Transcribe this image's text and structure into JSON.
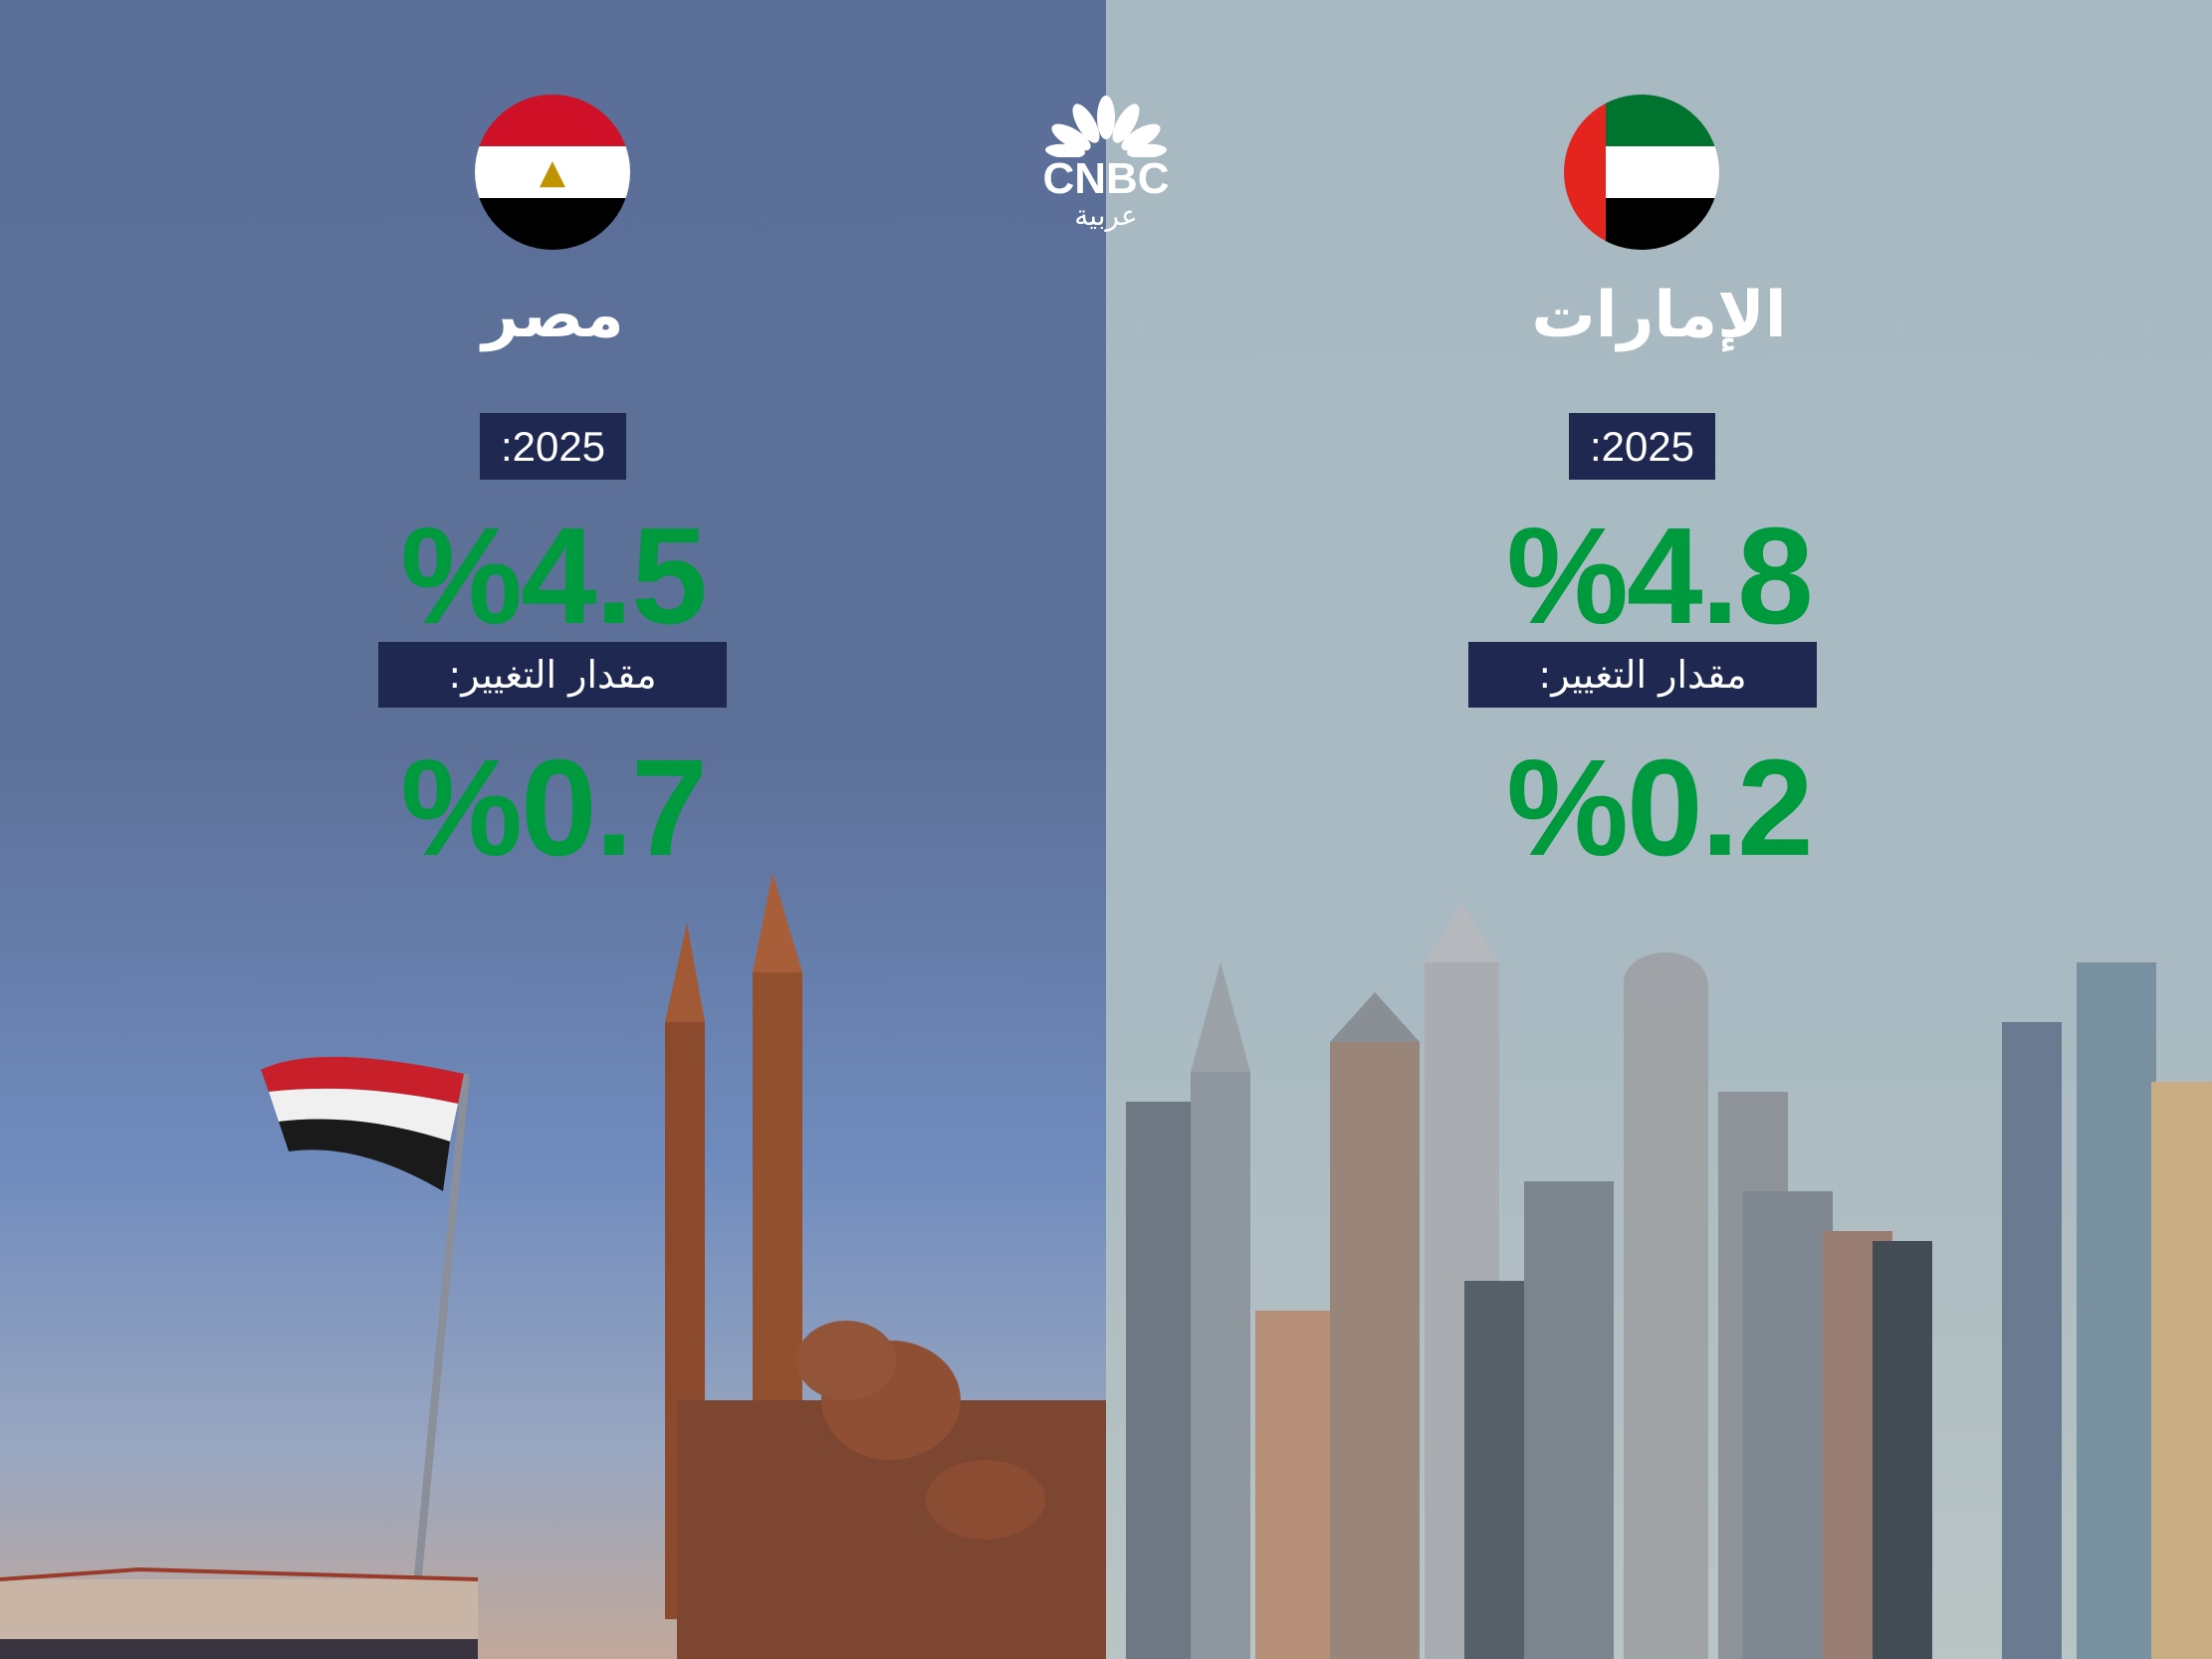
{
  "logo": {
    "brand": "CNBC",
    "subtitle": "عربية"
  },
  "colors": {
    "value_green": "#009a3e",
    "label_box": "#1f2850",
    "left_bg": "#5d7098",
    "right_bg": "#a8b9c1"
  },
  "egypt": {
    "name": "مصر",
    "flag_icon": "egypt-flag-icon",
    "year_label": ":2025",
    "value": "%4.5",
    "change_label": "مقدار التغيير:",
    "change_value": "%0.7"
  },
  "uae": {
    "name": "الإمارات",
    "flag_icon": "uae-flag-icon",
    "year_label": ":2025",
    "value": "%4.8",
    "change_label": "مقدار التغيير:",
    "change_value": "%0.2"
  }
}
